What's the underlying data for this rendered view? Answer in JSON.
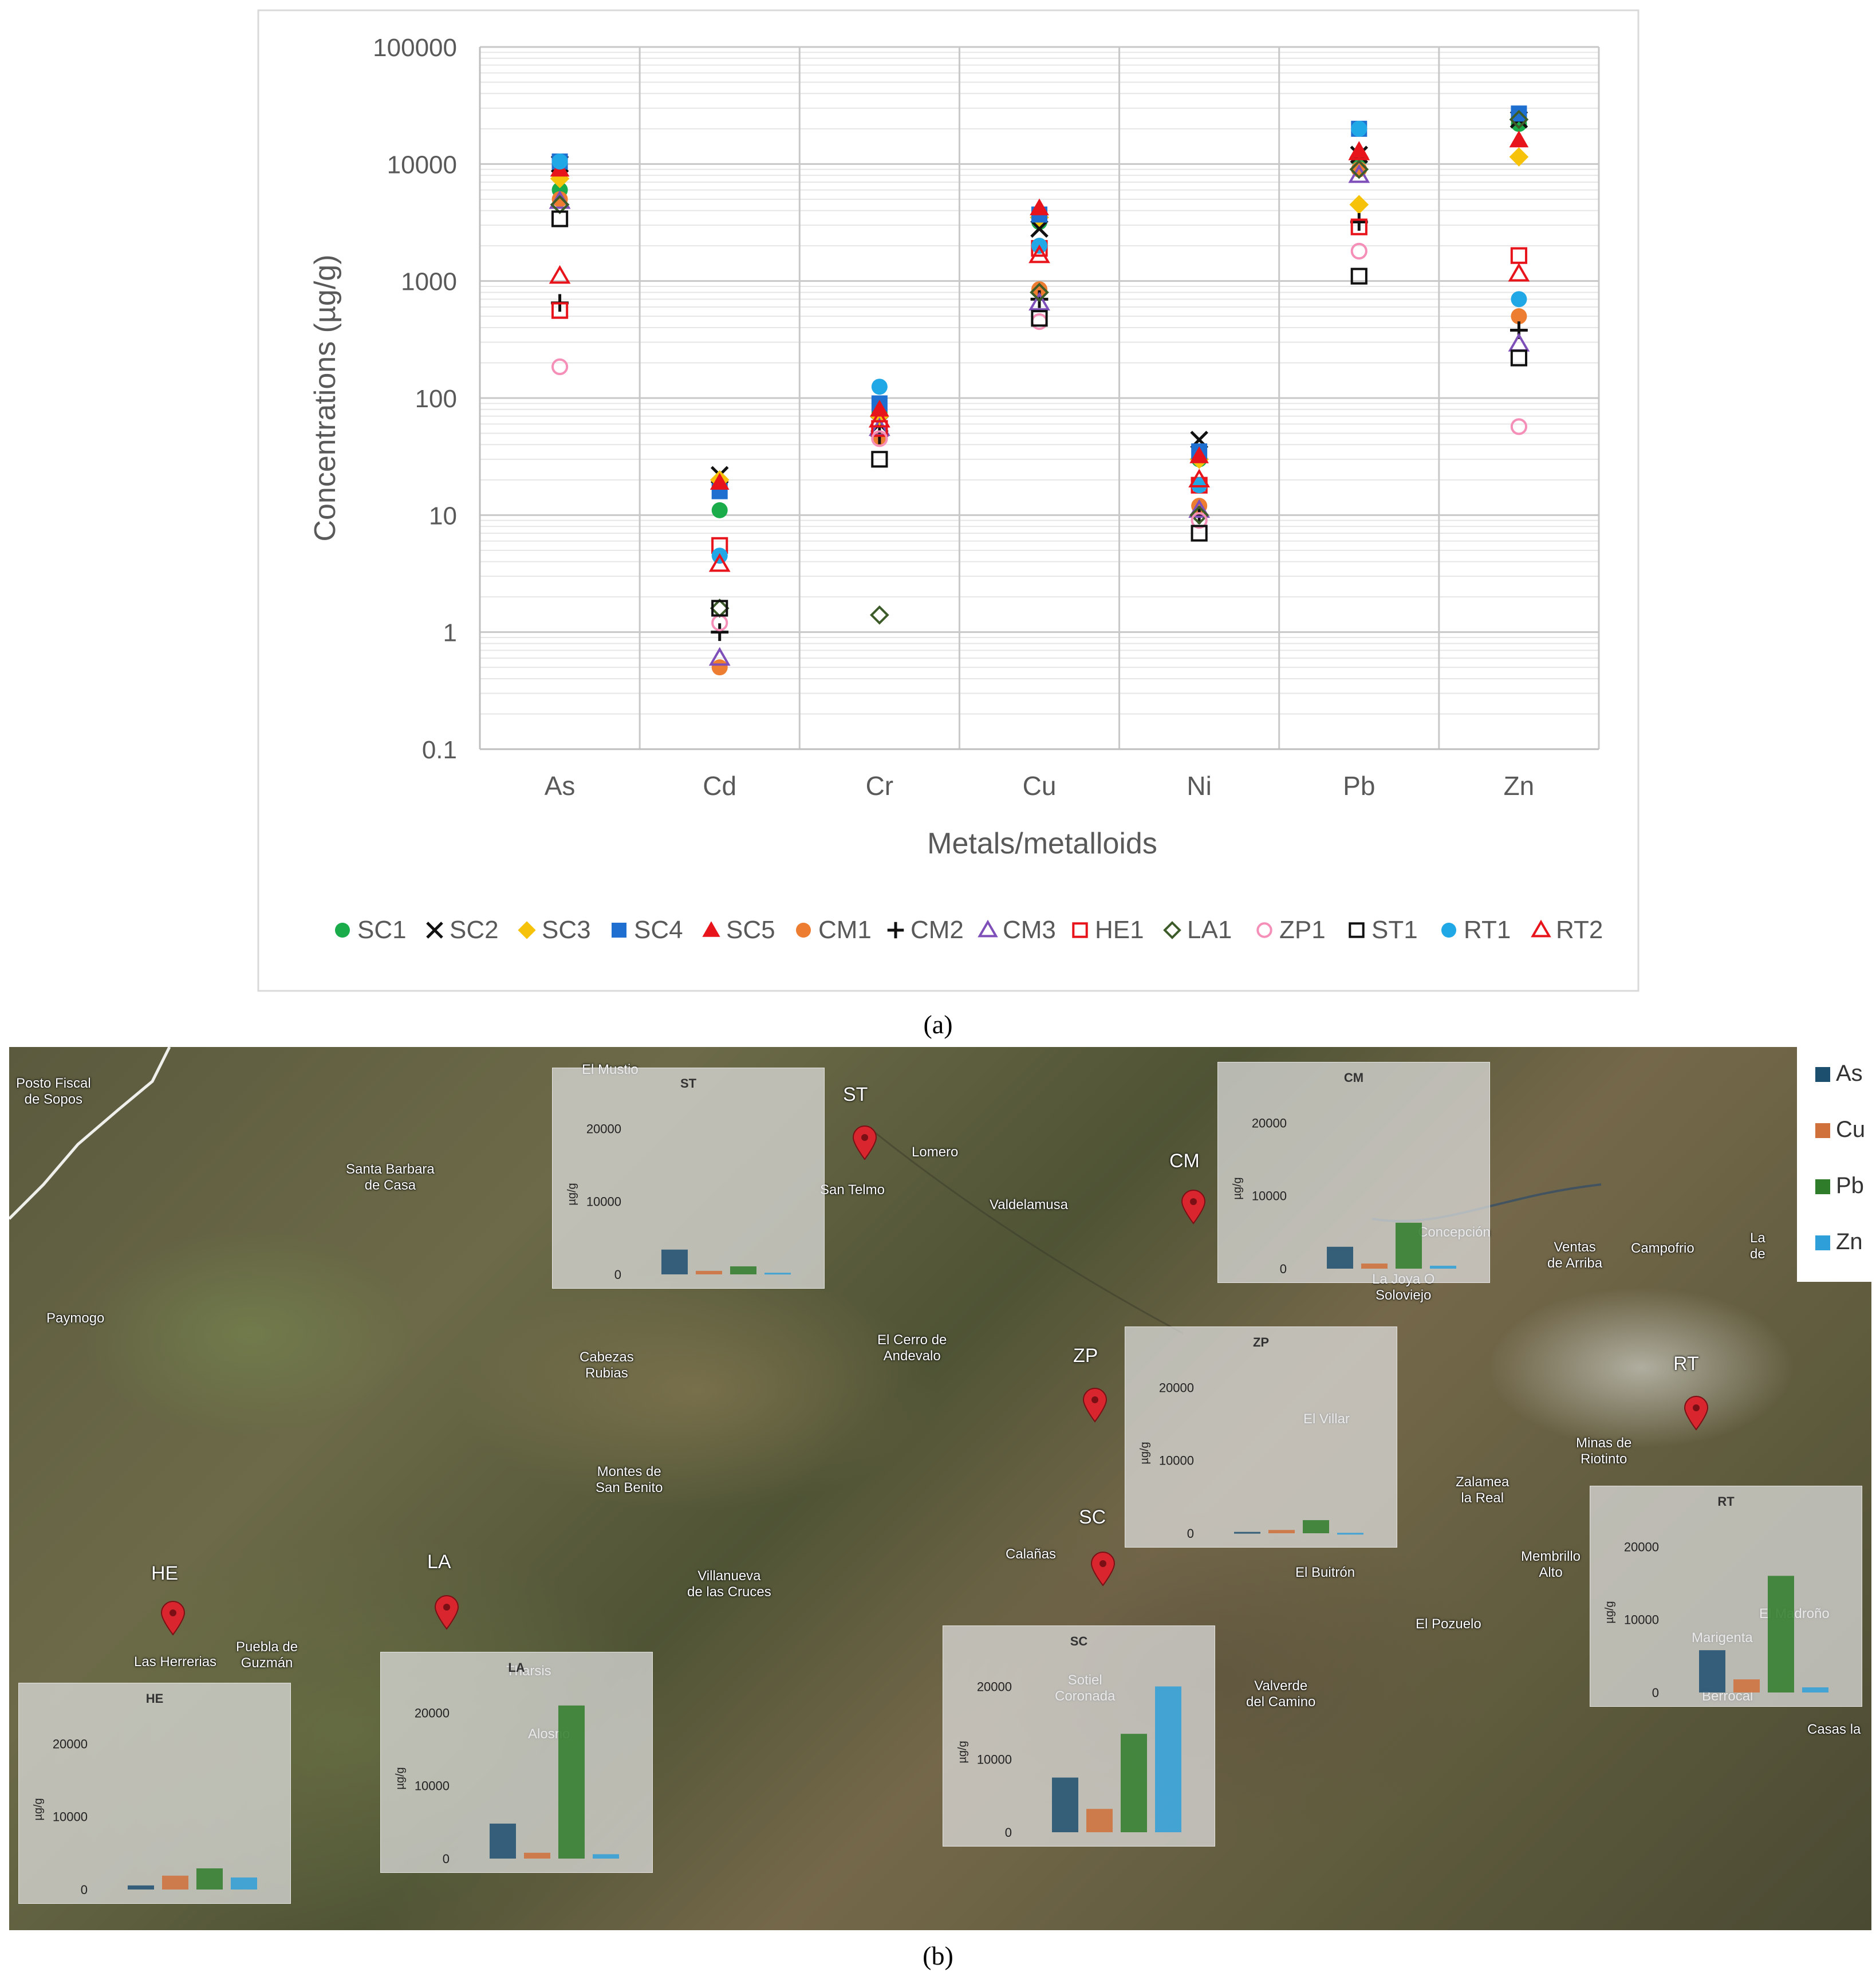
{
  "chart_data": [
    {
      "type": "scatter",
      "panel": "(a)",
      "xlabel": "Metals/metalloids",
      "ylabel": "Concentrations (µg/g)",
      "yscale": "log",
      "ylim": [
        0.1,
        100000
      ],
      "yticks": [
        "0.1",
        "1",
        "10",
        "100",
        "1000",
        "10000",
        "100000"
      ],
      "categories": [
        "As",
        "Cd",
        "Cr",
        "Cu",
        "Ni",
        "Pb",
        "Zn"
      ],
      "grid": true,
      "legend_position": "bottom",
      "series": [
        {
          "name": "SC1",
          "marker": "circle",
          "color": "#1aab4b",
          "values": [
            6000,
            11,
            75,
            3200,
            30,
            11000,
            22000
          ]
        },
        {
          "name": "SC2",
          "marker": "x",
          "color": "#111111",
          "values": [
            10000,
            22,
            60,
            2800,
            44,
            12000,
            24000
          ]
        },
        {
          "name": "SC3",
          "marker": "diamond",
          "color": "#f7c30a",
          "values": [
            7500,
            20,
            70,
            3500,
            30,
            4500,
            11500
          ]
        },
        {
          "name": "SC4",
          "marker": "square",
          "color": "#1f6fd0",
          "values": [
            10500,
            16,
            90,
            3700,
            35,
            20000,
            27000
          ]
        },
        {
          "name": "SC5",
          "marker": "triangle",
          "color": "#e8141c",
          "values": [
            9000,
            19,
            80,
            4200,
            32,
            13000,
            16000
          ]
        },
        {
          "name": "CM1",
          "marker": "circle",
          "color": "#ed7d31",
          "values": [
            5000,
            0.5,
            45,
            850,
            12,
            9000,
            500
          ]
        },
        {
          "name": "CM2",
          "marker": "plus",
          "color": "#111111",
          "values": [
            650,
            1.0,
            48,
            700,
            10,
            3200,
            380
          ]
        },
        {
          "name": "CM3",
          "marker": "triangle-open",
          "color": "#7e4fb8",
          "values": [
            4800,
            0.6,
            55,
            650,
            11,
            8000,
            290
          ]
        },
        {
          "name": "HE1",
          "marker": "square-open",
          "color": "#e8141c",
          "values": [
            560,
            5.5,
            55,
            1900,
            18,
            2900,
            1650
          ]
        },
        {
          "name": "LA1",
          "marker": "diamond-open",
          "color": "#3d5c2a",
          "values": [
            4500,
            1.6,
            1.4,
            800,
            10,
            9000,
            24000
          ]
        },
        {
          "name": "ZP1",
          "marker": "circle-open",
          "color": "#f58fb8",
          "values": [
            185,
            1.2,
            45,
            450,
            9,
            1800,
            57
          ]
        },
        {
          "name": "ST1",
          "marker": "square-open",
          "color": "#111111",
          "values": [
            3400,
            1.6,
            30,
            480,
            7,
            1100,
            220
          ]
        },
        {
          "name": "RT1",
          "marker": "circle",
          "color": "#20a7e6",
          "values": [
            10500,
            4.5,
            125,
            2000,
            18,
            20000,
            700
          ]
        },
        {
          "name": "RT2",
          "marker": "triangle-open",
          "color": "#e8141c",
          "values": [
            1100,
            3.8,
            65,
            1650,
            20,
            12500,
            1150
          ]
        }
      ]
    },
    {
      "type": "bar",
      "panel": "(b)",
      "legend": [
        "As",
        "Cu",
        "Pb",
        "Zn"
      ],
      "legend_colors": [
        "#1c4e6e",
        "#d0703a",
        "#2f7d2a",
        "#2e9fd8"
      ],
      "ylabel": "µg/g",
      "yticks": [
        "0",
        "10000",
        "20000"
      ],
      "ylim": [
        0,
        22000
      ],
      "insets": [
        {
          "site": "ST",
          "values": [
            3400,
            480,
            1100,
            220
          ]
        },
        {
          "site": "CM",
          "values": [
            3000,
            700,
            6300,
            400
          ]
        },
        {
          "site": "ZP",
          "values": [
            185,
            450,
            1800,
            57
          ]
        },
        {
          "site": "RT",
          "values": [
            5800,
            1800,
            16000,
            700
          ]
        },
        {
          "site": "SC",
          "values": [
            7500,
            3200,
            13500,
            20000
          ]
        },
        {
          "site": "LA",
          "values": [
            4800,
            800,
            21000,
            600
          ]
        },
        {
          "site": "HE",
          "values": [
            560,
            1900,
            2900,
            1650
          ]
        }
      ]
    }
  ],
  "captions": {
    "a": "(a)",
    "b": "(b)"
  },
  "map": {
    "site_codes": [
      "ST",
      "CM",
      "ZP",
      "SC",
      "RT",
      "HE",
      "LA"
    ],
    "place_names": [
      "Posto Fiscal\nde Sopos",
      "Santa Barbara\nde Casa",
      "El Mustio",
      "San Telmo",
      "Lomero",
      "Valdelamusa",
      "Paymogo",
      "Cabezas\nRubias",
      "El Cerro de\nAndevalo",
      "Concepción",
      "La Joya O\nSoloviejo",
      "Ventas\nde Arriba",
      "Campofrio",
      "La\nde",
      "El Villar",
      "Minas de\nRiotinto",
      "Montes de\nSan Benito",
      "Zalamea\nla Real",
      "Calañas",
      "El Buitrón",
      "Membrillo\nAlto",
      "El Madroño",
      "Marigenta",
      "Berrocal",
      "Villanueva\nde las Cruces",
      "Sotiel\nCoronada",
      "El Pozuelo",
      "Valverde\ndel Camino",
      "Las Herrerias",
      "Puebla de\nGuzmán",
      "Tharsis",
      "Alosno",
      "Casas la"
    ]
  }
}
